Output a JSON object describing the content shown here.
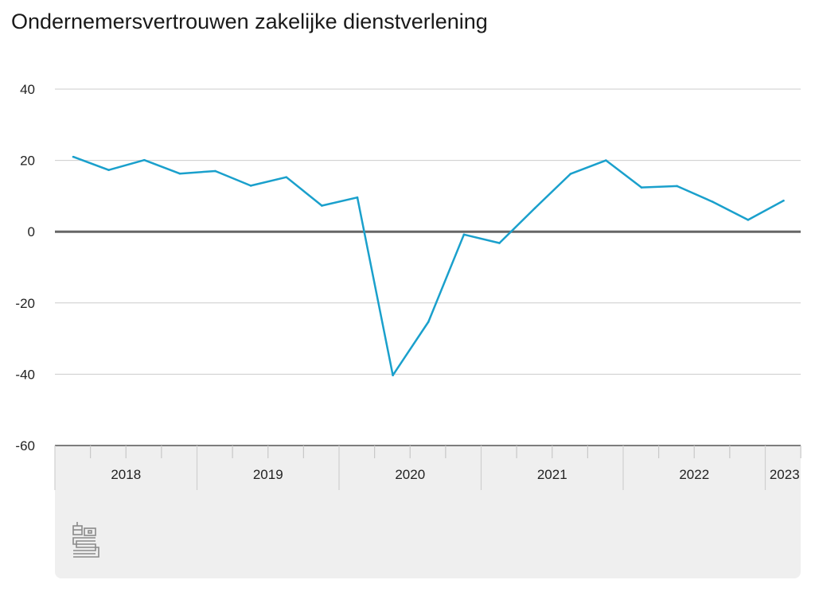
{
  "title": "Ondernemersvertrouwen zakelijke dienstverlening",
  "colors": {
    "series": "#1aa0cc",
    "zero_line": "#666666",
    "grid": "#cccccc",
    "axis_band": "#efefef",
    "logo": "#8a8a8a"
  },
  "logo_icon": "cbs-logo-icon",
  "chart_data": {
    "type": "line",
    "title": "Ondernemersvertrouwen zakelijke dienstverlening",
    "xlabel": "",
    "ylabel": "",
    "ylim": [
      -60,
      40
    ],
    "yticks": [
      "40",
      "20",
      "0",
      "-20",
      "-40",
      "-60"
    ],
    "grid": true,
    "x_axis_years": [
      "2018",
      "2019",
      "2020",
      "2021",
      "2022",
      "2023"
    ],
    "x": [
      "2018 Q1",
      "2018 Q2",
      "2018 Q3",
      "2018 Q4",
      "2019 Q1",
      "2019 Q2",
      "2019 Q3",
      "2019 Q4",
      "2020 Q1",
      "2020 Q2",
      "2020 Q3",
      "2020 Q4",
      "2021 Q1",
      "2021 Q2",
      "2021 Q3",
      "2021 Q4",
      "2022 Q1",
      "2022 Q2",
      "2022 Q3",
      "2022 Q4",
      "2023 Q1"
    ],
    "series": [
      {
        "values": [
          21,
          17.3,
          20.1,
          16.3,
          17,
          12.9,
          15.3,
          7.3,
          9.6,
          -40.3,
          -25.3,
          -0.8,
          -3.2,
          6.6,
          16.2,
          20,
          12.4,
          12.8,
          8.4,
          3.3,
          8.7
        ]
      }
    ]
  }
}
